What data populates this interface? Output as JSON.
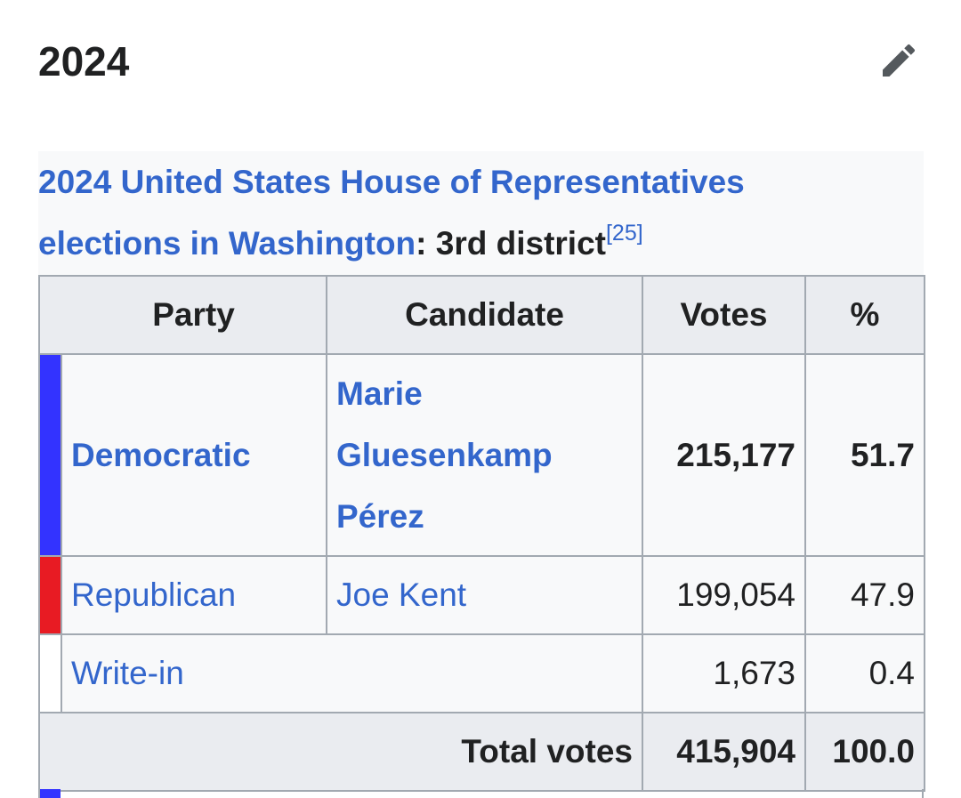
{
  "section": {
    "title": "2024",
    "edit_icon": "pencil-icon"
  },
  "caption": {
    "link_text_line1": "2024 United States House of Representatives",
    "link_text_line2": "elections in Washington",
    "suffix": ": 3rd district",
    "reference": "[25]"
  },
  "table": {
    "headers": {
      "party": "Party",
      "candidate": "Candidate",
      "votes": "Votes",
      "pct": "%"
    },
    "rows": [
      {
        "party": "Democratic",
        "candidate_line1": "Marie",
        "candidate_line2": "Gluesenkamp",
        "candidate_line3": "Pérez",
        "votes": "215,177",
        "pct": "51.7",
        "color": "#3333ff"
      },
      {
        "party": "Republican",
        "candidate": "Joe Kent",
        "votes": "199,054",
        "pct": "47.9",
        "color": "#e81b23"
      },
      {
        "party": "Write-in",
        "votes": "1,673",
        "pct": "0.4",
        "color": "#ffffff"
      }
    ],
    "total": {
      "label": "Total votes",
      "votes": "415,904",
      "pct": "100.0"
    }
  },
  "colors": {
    "link": "#3366cc",
    "header_bg": "#eaecf0",
    "border": "#a2a9b1",
    "next_row_color": "#3333ff"
  }
}
